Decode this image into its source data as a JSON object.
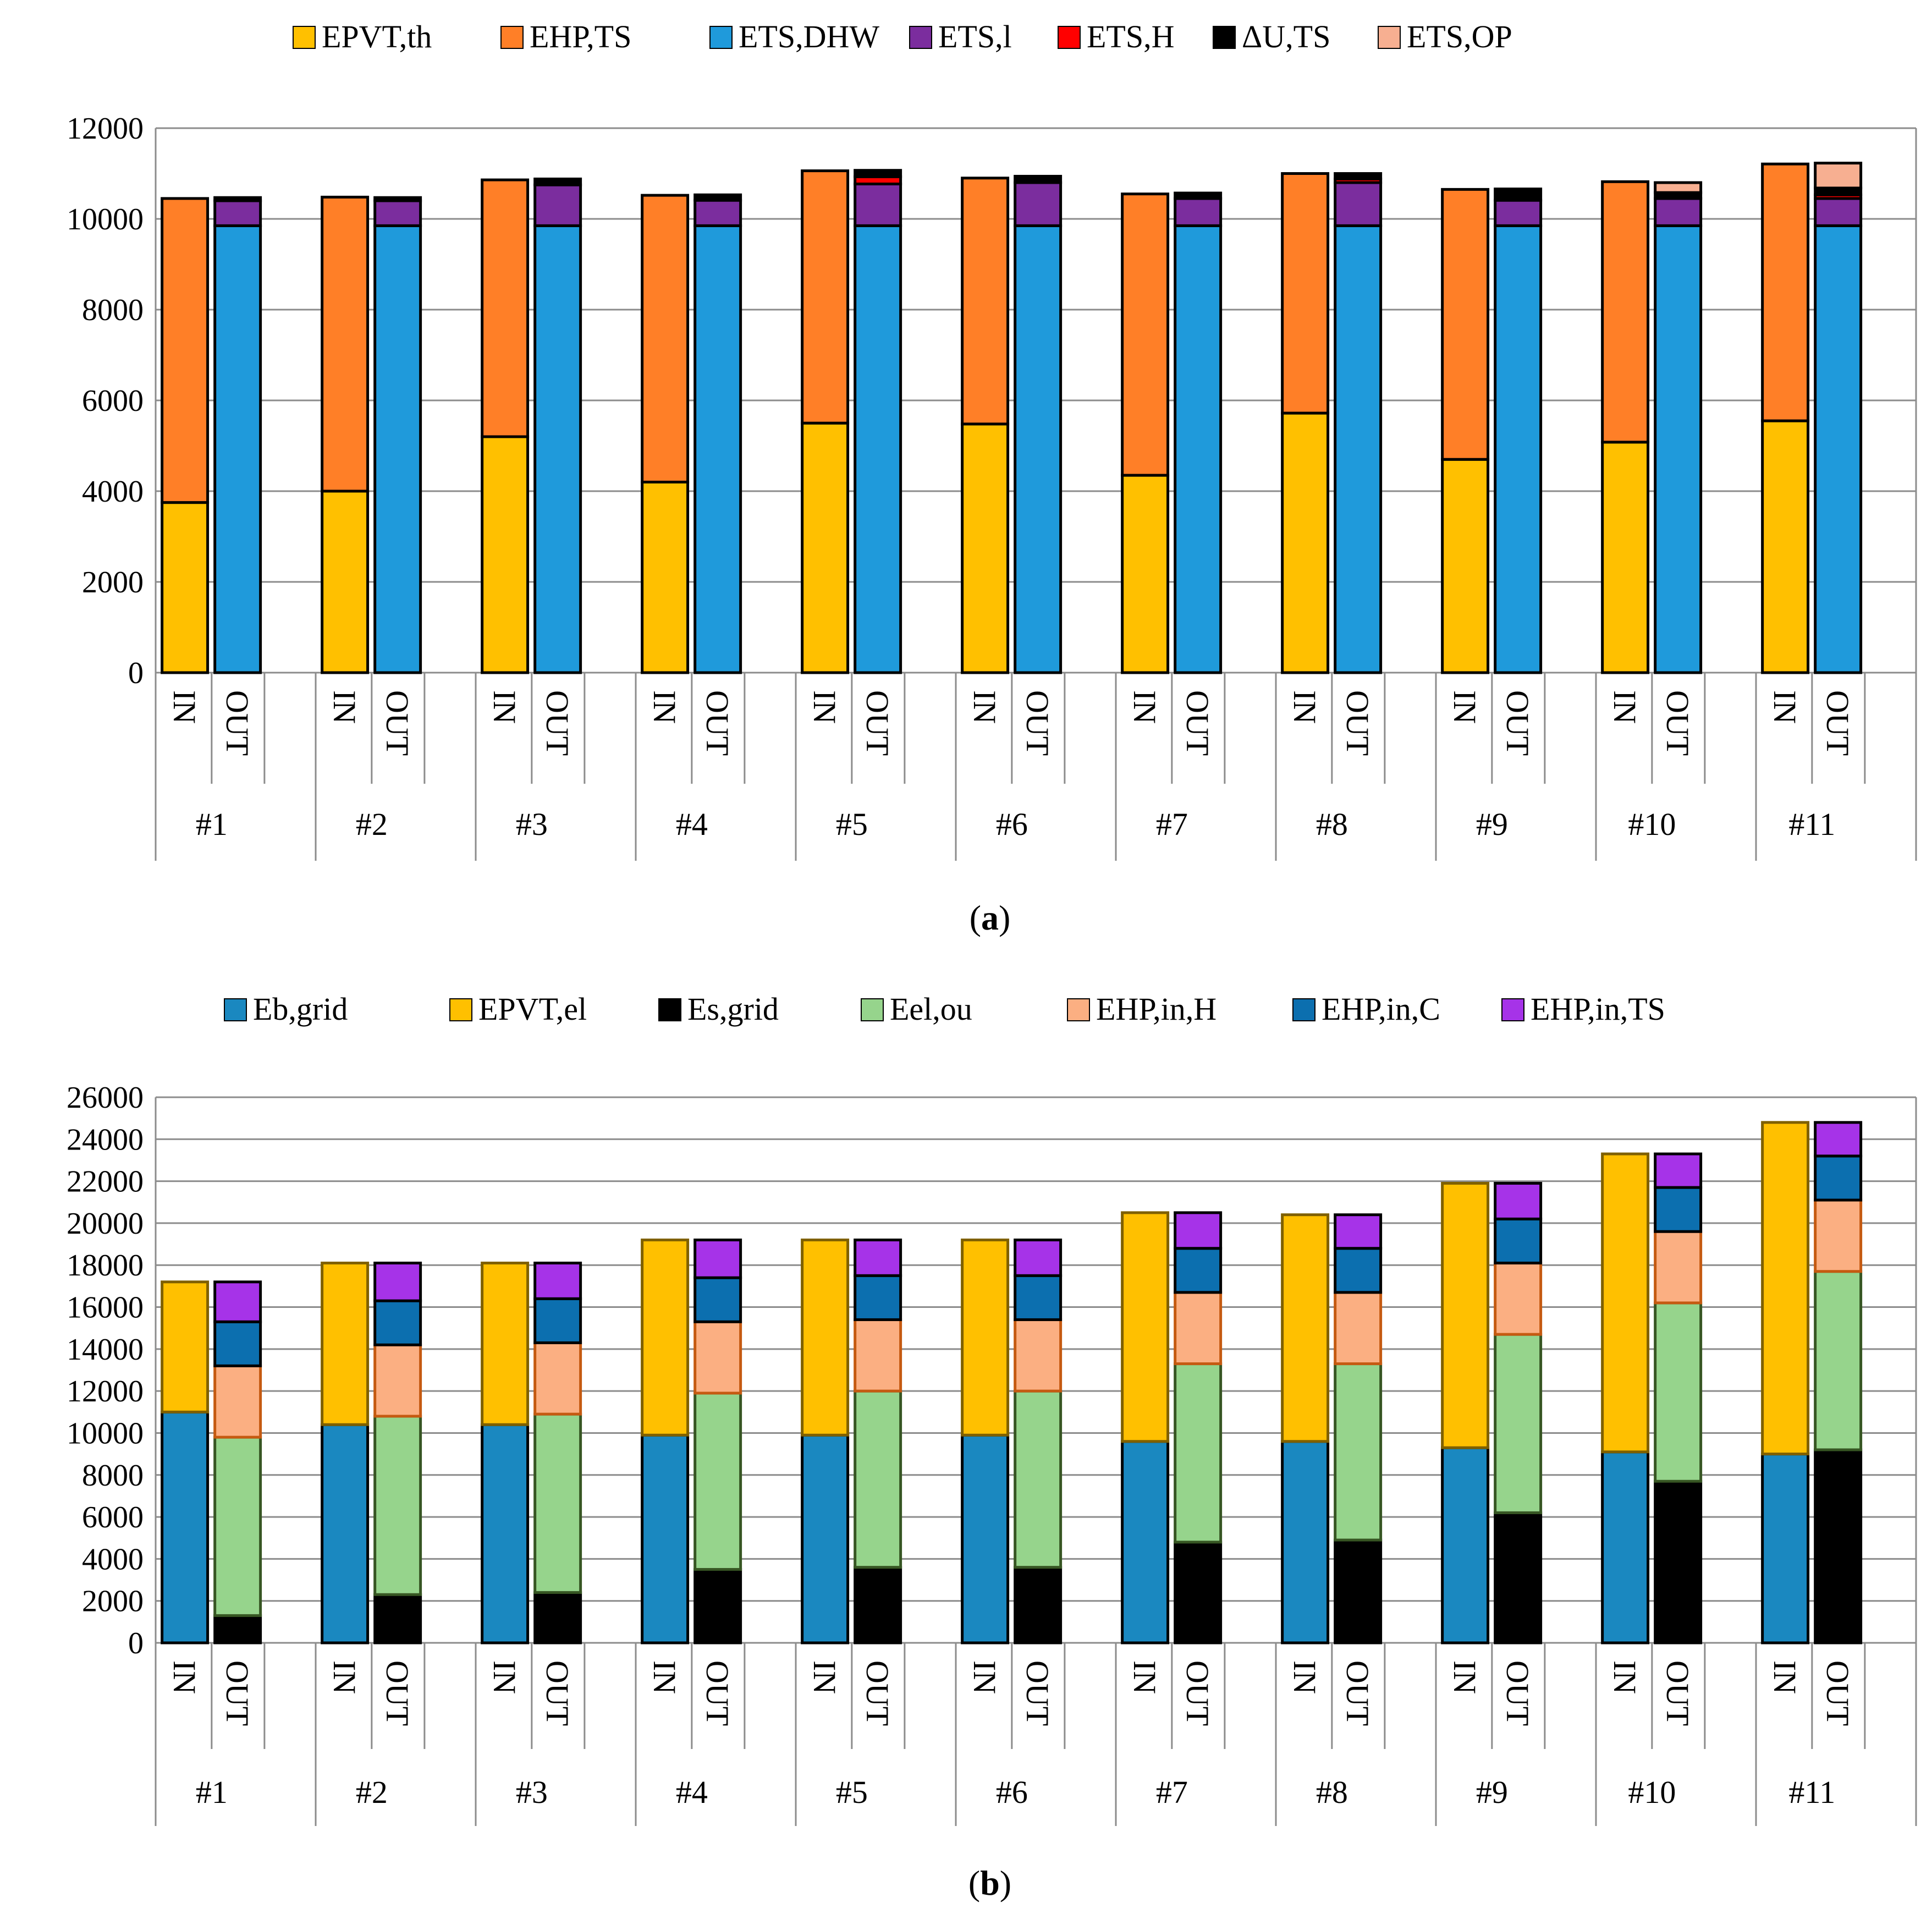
{
  "chart_data": [
    {
      "type": "bar",
      "stacked": true,
      "panel_label": "a",
      "ylim": [
        0,
        12000
      ],
      "yticks": [
        0,
        2000,
        4000,
        6000,
        8000,
        10000,
        12000
      ],
      "grid": true,
      "legend_position": "top",
      "groups": [
        "#1",
        "#2",
        "#3",
        "#4",
        "#5",
        "#6",
        "#7",
        "#8",
        "#9",
        "#10",
        "#11"
      ],
      "subcategories": [
        "IN",
        "OUT"
      ],
      "series": [
        {
          "name": "EPVT,th",
          "color": "#FFC000",
          "stack": "IN",
          "values": [
            3750,
            4000,
            5200,
            4200,
            5500,
            5480,
            4350,
            5720,
            4700,
            5080,
            5550
          ]
        },
        {
          "name": "EHP,TS",
          "color": "#FF7F27",
          "stack": "IN",
          "values": [
            6700,
            6480,
            5660,
            6320,
            5560,
            5420,
            6200,
            5280,
            5950,
            5740,
            5660
          ]
        },
        {
          "name": "ETS,DHW",
          "color": "#1F9ADB",
          "stack": "OUT",
          "values": [
            9850,
            9850,
            9850,
            9850,
            9850,
            9850,
            9850,
            9850,
            9850,
            9850,
            9850
          ]
        },
        {
          "name": "ETS,l",
          "color": "#7B2D9E",
          "stack": "OUT",
          "values": [
            550,
            550,
            900,
            560,
            920,
            950,
            600,
            950,
            560,
            600,
            600
          ]
        },
        {
          "name": "ETS,H",
          "color": "#FF0000",
          "stack": "OUT",
          "values": [
            0,
            0,
            0,
            0,
            160,
            0,
            0,
            80,
            0,
            0,
            80
          ]
        },
        {
          "name": "ΔU,TS",
          "color": "#000000",
          "stack": "OUT",
          "values": [
            70,
            70,
            130,
            120,
            140,
            140,
            120,
            120,
            250,
            130,
            150
          ]
        },
        {
          "name": "ETS,OP",
          "color": "#F7AF91",
          "stack": "OUT",
          "values": [
            0,
            0,
            0,
            0,
            0,
            0,
            0,
            0,
            0,
            220,
            550
          ]
        }
      ]
    },
    {
      "type": "bar",
      "stacked": true,
      "panel_label": "b",
      "ylim": [
        0,
        26000
      ],
      "yticks": [
        0,
        2000,
        4000,
        6000,
        8000,
        10000,
        12000,
        14000,
        16000,
        18000,
        20000,
        22000,
        24000,
        26000
      ],
      "grid": true,
      "legend_position": "top",
      "groups": [
        "#1",
        "#2",
        "#3",
        "#4",
        "#5",
        "#6",
        "#7",
        "#8",
        "#9",
        "#10",
        "#11"
      ],
      "subcategories": [
        "IN",
        "OUT"
      ],
      "series": [
        {
          "name": "Eb,grid",
          "color": "#1A88C0",
          "stack": "IN",
          "values": [
            11000,
            10400,
            10400,
            9900,
            9900,
            9900,
            9600,
            9600,
            9300,
            9100,
            9000
          ]
        },
        {
          "name": "EPVT,el",
          "color": "#FFC000",
          "stack": "IN",
          "values": [
            6200,
            7700,
            7700,
            9300,
            9300,
            9300,
            10900,
            10800,
            12600,
            14200,
            15800
          ]
        },
        {
          "name": "Es,grid",
          "color": "#000000",
          "stack": "OUT",
          "values": [
            1300,
            2300,
            2400,
            3500,
            3600,
            3600,
            4800,
            4900,
            6200,
            7700,
            9200
          ]
        },
        {
          "name": "Eel,ou",
          "color": "#96D48C",
          "stack": "OUT",
          "values": [
            8500,
            8500,
            8500,
            8400,
            8400,
            8400,
            8500,
            8400,
            8500,
            8500,
            8500
          ]
        },
        {
          "name": "EHP,in,H",
          "color": "#FBAF82",
          "stack": "OUT",
          "values": [
            3400,
            3400,
            3400,
            3400,
            3400,
            3400,
            3400,
            3400,
            3400,
            3400,
            3400
          ]
        },
        {
          "name": "EHP,in,C",
          "color": "#0C6FAF",
          "stack": "OUT",
          "values": [
            2100,
            2100,
            2100,
            2100,
            2100,
            2100,
            2100,
            2100,
            2100,
            2100,
            2100
          ]
        },
        {
          "name": "EHP,in,TS",
          "color": "#A633E8",
          "stack": "OUT",
          "values": [
            1900,
            1800,
            1700,
            1800,
            1700,
            1700,
            1700,
            1600,
            1700,
            1600,
            1600
          ]
        }
      ]
    }
  ]
}
